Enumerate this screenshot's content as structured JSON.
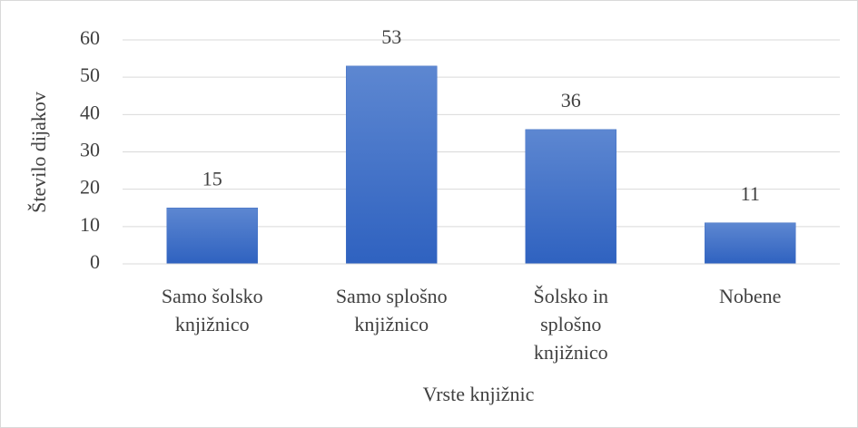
{
  "chart_data": {
    "type": "bar",
    "categories": [
      "Samo šolsko knjižnico",
      "Samo splošno knjižnico",
      "Šolsko in splošno knjižnico",
      "Nobene"
    ],
    "values": [
      15,
      53,
      36,
      11
    ],
    "color": "#4472c4",
    "x_label": "Vrste knjižnic",
    "y_label": "Število dijakov",
    "ylim": [
      0,
      60
    ],
    "yticks": [
      0,
      10,
      20,
      30,
      40,
      50,
      60
    ],
    "grid": true
  }
}
